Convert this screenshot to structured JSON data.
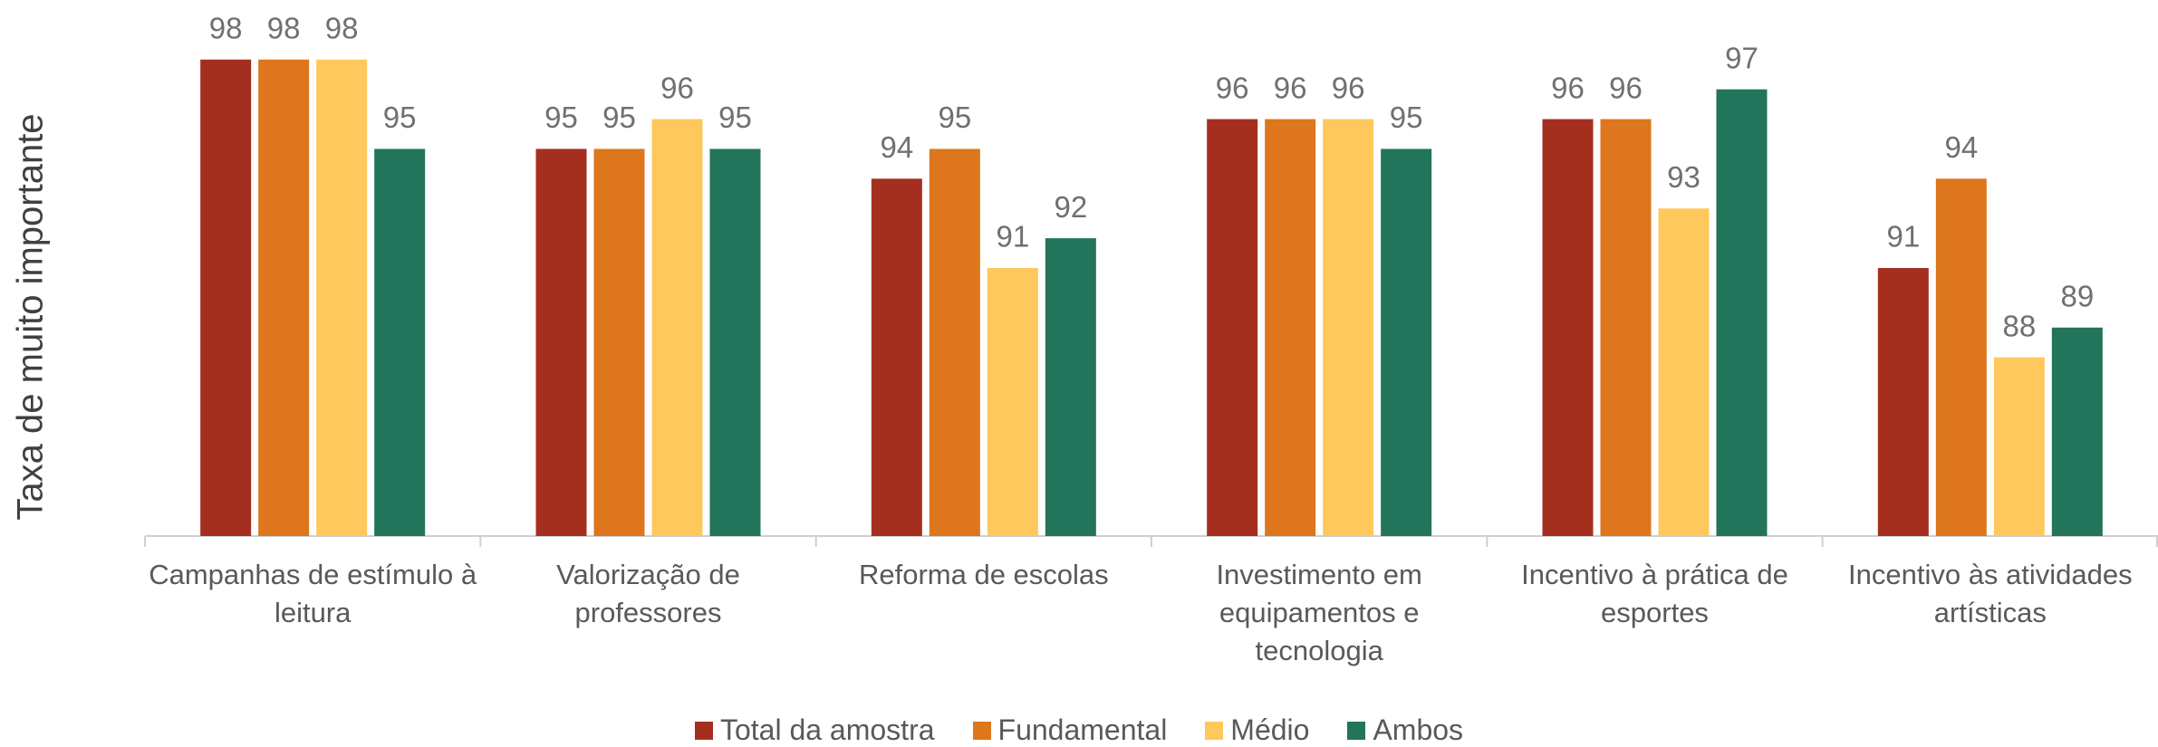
{
  "chart_data": {
    "type": "bar",
    "y_label": "Taxa de muito importante",
    "categories": [
      "Campanhas de estímulo à leitura",
      "Valorização de professores",
      "Reforma de escolas",
      "Investimento em equipamentos e tecnologia",
      "Incentivo à prática de esportes",
      "Incentivo às atividades artísticas"
    ],
    "series": [
      {
        "name": "Total da amostra",
        "color": "#a52f1f",
        "values": [
          98,
          95,
          94,
          96,
          96,
          91
        ]
      },
      {
        "name": "Fundamental",
        "color": "#dd761c",
        "values": [
          98,
          95,
          95,
          96,
          96,
          94
        ]
      },
      {
        "name": "Médio",
        "color": "#fec85c",
        "values": [
          98,
          96,
          91,
          96,
          93,
          88
        ]
      },
      {
        "name": "Ambos",
        "color": "#22745a",
        "values": [
          95,
          95,
          92,
          95,
          97,
          89
        ]
      }
    ],
    "ylim": [
      82,
      100
    ],
    "legend": "bottom"
  }
}
